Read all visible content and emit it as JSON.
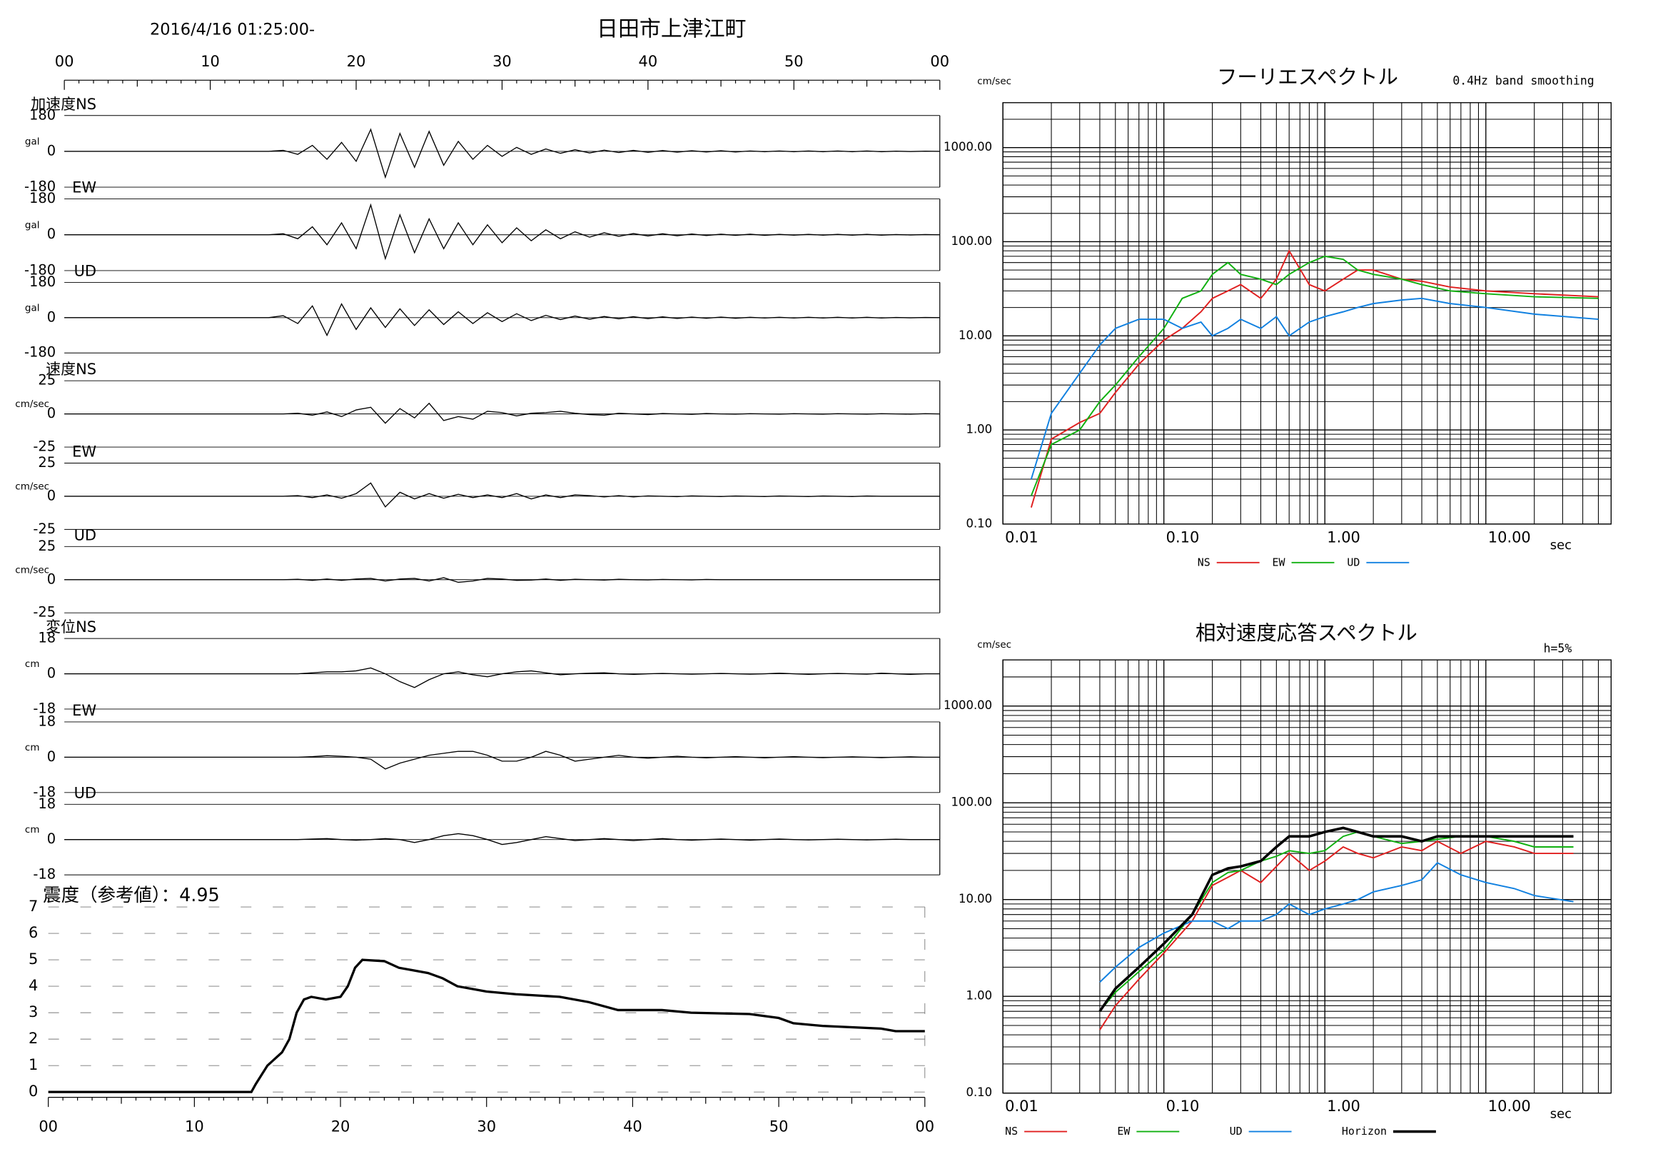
{
  "header": {
    "datetime": "2016/4/16 01:25:00-",
    "station": "日田市上津江町"
  },
  "chart_data": [
    {
      "type": "waveform",
      "xlim": [
        0,
        60
      ],
      "xticks": [
        {
          "value": 0,
          "label": "00"
        },
        10,
        20,
        30,
        40,
        50,
        {
          "value": 60,
          "label": "00"
        }
      ],
      "x": [
        0,
        14,
        15,
        16,
        17,
        18,
        19,
        20,
        21,
        22,
        23,
        24,
        25,
        26,
        27,
        28,
        29,
        30,
        31,
        32,
        33,
        34,
        35,
        36,
        37,
        38,
        39,
        40,
        41,
        42,
        43,
        44,
        45,
        46,
        47,
        48,
        49,
        50,
        51,
        52,
        53,
        54,
        55,
        56,
        57,
        58,
        59,
        60
      ],
      "series": [
        {
          "name": "加速度NS",
          "unit": "gal",
          "color": "#000000",
          "ylim": [
            -180,
            180
          ],
          "yticks": [
            -180,
            0,
            180
          ],
          "values": [
            0,
            0,
            5,
            -15,
            30,
            -40,
            45,
            -50,
            110,
            -130,
            90,
            -80,
            100,
            -70,
            50,
            -40,
            30,
            -25,
            20,
            -15,
            12,
            -10,
            8,
            -8,
            6,
            -6,
            5,
            -5,
            4,
            -4,
            3,
            -3,
            3,
            -3,
            2,
            -2,
            2,
            -2,
            2,
            -2,
            2,
            -2,
            2,
            -2,
            1,
            -1,
            1,
            0
          ]
        },
        {
          "name": "EW",
          "unit": "gal",
          "color": "#000000",
          "ylim": [
            -180,
            180
          ],
          "yticks": [
            -180,
            0,
            180
          ],
          "values": [
            0,
            0,
            5,
            -20,
            40,
            -50,
            60,
            -70,
            150,
            -120,
            100,
            -90,
            80,
            -70,
            60,
            -50,
            50,
            -40,
            35,
            -30,
            25,
            -20,
            15,
            -12,
            10,
            -8,
            6,
            -6,
            5,
            -5,
            4,
            -4,
            3,
            -3,
            3,
            -3,
            2,
            -2,
            2,
            -2,
            2,
            -2,
            2,
            -2,
            1,
            -1,
            1,
            0
          ]
        },
        {
          "name": "UD",
          "unit": "gal",
          "color": "#000000",
          "ylim": [
            -180,
            180
          ],
          "yticks": [
            -180,
            0,
            180
          ],
          "values": [
            0,
            0,
            10,
            -30,
            60,
            -90,
            70,
            -60,
            50,
            -50,
            45,
            -40,
            40,
            -35,
            30,
            -30,
            25,
            -20,
            20,
            -15,
            12,
            -10,
            8,
            -8,
            6,
            -6,
            5,
            -5,
            4,
            -4,
            3,
            -3,
            3,
            -3,
            2,
            -2,
            2,
            -2,
            2,
            -2,
            2,
            -2,
            2,
            -2,
            1,
            -1,
            1,
            0
          ]
        },
        {
          "name": "速度NS",
          "unit": "cm/sec",
          "color": "#000000",
          "ylim": [
            -25,
            25
          ],
          "yticks": [
            -25,
            0,
            25
          ],
          "values": [
            0,
            0,
            0,
            0.5,
            -1,
            1.5,
            -2,
            3,
            5,
            -7,
            4,
            -3,
            8,
            -5,
            -2,
            -4,
            2,
            1,
            -1.5,
            0.5,
            1,
            2,
            0.5,
            -0.5,
            -1,
            0.5,
            0,
            -0.5,
            0.3,
            0,
            -0.3,
            0.3,
            0,
            -0.2,
            0.2,
            0,
            -0.2,
            0.2,
            0,
            -0.2,
            0.2,
            0,
            -0.2,
            0.2,
            0,
            -0.2,
            0.2,
            0
          ]
        },
        {
          "name": "EW",
          "unit": "cm/sec",
          "color": "#000000",
          "ylim": [
            -25,
            25
          ],
          "yticks": [
            -25,
            0,
            25
          ],
          "values": [
            0,
            0,
            0,
            0.5,
            -1,
            1,
            -1.5,
            2,
            10,
            -8,
            3,
            -2,
            2,
            -1.5,
            1.5,
            -1,
            1,
            -1,
            2,
            -2,
            1,
            -1,
            1,
            0.5,
            -0.5,
            0.5,
            -0.5,
            0.3,
            0,
            -0.3,
            0.3,
            0,
            -0.2,
            0.2,
            0,
            -0.2,
            0.2,
            0,
            -0.2,
            0.2,
            0,
            -0.2,
            0.2,
            0,
            0,
            0,
            0,
            0
          ]
        },
        {
          "name": "UD",
          "unit": "cm/sec",
          "color": "#000000",
          "ylim": [
            -25,
            25
          ],
          "yticks": [
            -25,
            0,
            25
          ],
          "values": [
            0,
            0,
            0,
            0.3,
            -0.5,
            0.5,
            -0.5,
            0.5,
            1,
            -1,
            0.5,
            1,
            -1,
            1.5,
            -2,
            -1,
            1,
            0.5,
            -0.5,
            -0.3,
            0.5,
            -0.5,
            0.3,
            0,
            -0.3,
            0.3,
            0,
            -0.2,
            0.2,
            0,
            -0.2,
            0.2,
            0,
            0,
            0,
            0,
            0,
            0,
            0,
            0,
            0,
            0,
            0,
            0,
            0,
            0,
            0,
            0
          ]
        },
        {
          "name": "変位NS",
          "unit": "cm",
          "color": "#000000",
          "ylim": [
            -18,
            18
          ],
          "yticks": [
            -18,
            0,
            18
          ],
          "values": [
            0,
            0,
            0,
            0,
            0.5,
            1,
            1,
            1.5,
            3,
            0,
            -4,
            -7,
            -3,
            0,
            1,
            -0.5,
            -1.5,
            0,
            1,
            1.5,
            0.5,
            -0.5,
            0,
            0.3,
            0.5,
            0,
            -0.3,
            0,
            0.2,
            0,
            -0.2,
            0,
            0.2,
            0,
            -0.2,
            0,
            0.3,
            0,
            -0.3,
            0,
            0.2,
            0,
            -0.2,
            0.3,
            0,
            -0.3,
            0,
            0
          ]
        },
        {
          "name": "EW",
          "unit": "cm",
          "color": "#000000",
          "ylim": [
            -18,
            18
          ],
          "yticks": [
            -18,
            0,
            18
          ],
          "values": [
            0,
            0,
            0,
            0,
            0.3,
            0.8,
            0.5,
            0,
            -1,
            -6,
            -3,
            -1,
            1,
            2,
            3,
            3,
            1,
            -2,
            -2,
            0,
            3,
            1,
            -2,
            -1,
            0,
            1,
            0,
            -0.5,
            0,
            0.5,
            0,
            -0.3,
            0,
            0.3,
            0,
            -0.3,
            0,
            0.3,
            0,
            -0.2,
            0,
            0.2,
            0,
            -0.2,
            0,
            0.2,
            0,
            0
          ]
        },
        {
          "name": "UD",
          "unit": "cm",
          "color": "#000000",
          "ylim": [
            -18,
            18
          ],
          "yticks": [
            -18,
            0,
            18
          ],
          "values": [
            0,
            0,
            0,
            0,
            0.3,
            0.5,
            0,
            -0.3,
            0,
            0.5,
            0,
            -1.5,
            0,
            2,
            3,
            2,
            0,
            -2.5,
            -1.5,
            0,
            1.5,
            0.5,
            -0.5,
            0,
            0.5,
            0,
            -0.5,
            0,
            0.5,
            0,
            -0.3,
            0,
            0.3,
            0,
            -0.3,
            0,
            0.3,
            0,
            -0.2,
            0,
            0.2,
            0,
            -0.2,
            0,
            0.2,
            0,
            0,
            0
          ]
        }
      ]
    },
    {
      "type": "intensity",
      "title": "震度（参考値）：4.95",
      "color": "#000000",
      "grid": true,
      "xlim": [
        0,
        60
      ],
      "xticks": [
        {
          "value": 0,
          "label": "00"
        },
        10,
        20,
        30,
        40,
        50,
        {
          "value": 60,
          "label": "00"
        }
      ],
      "ylim": [
        0,
        7
      ],
      "yticks": [
        0,
        1,
        2,
        3,
        4,
        5,
        6,
        7
      ],
      "x": [
        0,
        13.9,
        14.2,
        15,
        16,
        16.5,
        17,
        17.5,
        18,
        19,
        20,
        20.5,
        21,
        21.5,
        23,
        24,
        25,
        26,
        27,
        28,
        30,
        32,
        35,
        37,
        39,
        42,
        44,
        48,
        50,
        51,
        53,
        57,
        58,
        60
      ],
      "values": [
        0,
        0,
        0.3,
        1,
        1.5,
        2,
        3,
        3.5,
        3.6,
        3.5,
        3.6,
        4,
        4.7,
        5,
        4.95,
        4.7,
        4.6,
        4.5,
        4.3,
        4,
        3.8,
        3.7,
        3.6,
        3.4,
        3.1,
        3.1,
        3.0,
        2.95,
        2.8,
        2.6,
        2.5,
        2.4,
        2.3,
        2.3
      ]
    },
    {
      "type": "log-spectrum",
      "title": "フーリエスペクトル",
      "subtitle": "0.4Hz band smoothing",
      "ylabel": "cm/sec",
      "xlabel": "sec",
      "xlog": true,
      "ylog": true,
      "grid": true,
      "xlim": [
        0.01,
        60
      ],
      "ylim": [
        0.1,
        3000
      ],
      "xticks": [
        0.01,
        {
          "value": 0.1,
          "label": "0.10"
        },
        {
          "value": 1,
          "label": "1.00"
        },
        {
          "value": 10,
          "label": "10.00"
        }
      ],
      "yticks": [
        {
          "value": 0.1,
          "label": "0.10"
        },
        {
          "value": 1,
          "label": "1.00"
        },
        {
          "value": 10,
          "label": "10.00"
        },
        {
          "value": 100,
          "label": "100.00"
        },
        {
          "value": 1000,
          "label": "1000.00"
        }
      ],
      "x": [
        0.015,
        0.02,
        0.03,
        0.04,
        0.05,
        0.07,
        0.1,
        0.13,
        0.17,
        0.2,
        0.25,
        0.3,
        0.4,
        0.5,
        0.6,
        0.8,
        1.0,
        1.3,
        1.6,
        2.0,
        3,
        4,
        6,
        10,
        20,
        50
      ],
      "series": [
        {
          "name": "NS",
          "color": "#e02020",
          "values": [
            0.15,
            0.8,
            1.2,
            1.5,
            2.5,
            5,
            9,
            12,
            18,
            25,
            30,
            35,
            25,
            40,
            80,
            35,
            30,
            40,
            50,
            50,
            40,
            38,
            33,
            30,
            28,
            26
          ]
        },
        {
          "name": "EW",
          "color": "#10b010",
          "values": [
            0.2,
            0.7,
            1.0,
            2,
            3,
            6,
            12,
            25,
            30,
            45,
            60,
            45,
            40,
            35,
            45,
            60,
            70,
            65,
            50,
            45,
            40,
            35,
            30,
            28,
            26,
            25
          ]
        },
        {
          "name": "UD",
          "color": "#1080e0",
          "values": [
            0.3,
            1.5,
            4,
            8,
            12,
            15,
            15,
            12,
            14,
            10,
            12,
            15,
            12,
            16,
            10,
            14,
            16,
            18,
            20,
            22,
            24,
            25,
            22,
            20,
            17,
            15
          ]
        }
      ]
    },
    {
      "type": "log-spectrum",
      "title": "相対速度応答スペクトル",
      "subtitle": "h=5%",
      "ylabel": "cm/sec",
      "xlabel": "sec",
      "xlog": true,
      "ylog": true,
      "grid": true,
      "xlim": [
        0.01,
        60
      ],
      "ylim": [
        0.1,
        3000
      ],
      "xticks": [
        0.01,
        {
          "value": 0.1,
          "label": "0.10"
        },
        {
          "value": 1,
          "label": "1.00"
        },
        {
          "value": 10,
          "label": "10.00"
        }
      ],
      "yticks": [
        {
          "value": 0.1,
          "label": "0.10"
        },
        {
          "value": 1,
          "label": "1.00"
        },
        {
          "value": 10,
          "label": "10.00"
        },
        {
          "value": 100,
          "label": "100.00"
        },
        {
          "value": 1000,
          "label": "1000.00"
        }
      ],
      "x": [
        0.04,
        0.05,
        0.07,
        0.1,
        0.15,
        0.2,
        0.25,
        0.3,
        0.4,
        0.5,
        0.6,
        0.8,
        1,
        1.3,
        1.6,
        2,
        3,
        4,
        5,
        7,
        10,
        15,
        20,
        35
      ],
      "series": [
        {
          "name": "NS",
          "color": "#e02020",
          "values": [
            0.45,
            0.8,
            1.5,
            2.8,
            6,
            14,
            17,
            20,
            15,
            22,
            30,
            20,
            25,
            35,
            30,
            27,
            35,
            32,
            40,
            30,
            40,
            35,
            30,
            30
          ]
        },
        {
          "name": "EW",
          "color": "#10b010",
          "values": [
            0.7,
            1.1,
            1.8,
            3,
            7,
            15,
            19,
            20,
            25,
            28,
            32,
            30,
            32,
            45,
            50,
            45,
            38,
            40,
            42,
            45,
            45,
            40,
            35,
            35
          ]
        },
        {
          "name": "UD",
          "color": "#1080e0",
          "values": [
            1.4,
            2.0,
            3.2,
            4.5,
            6,
            6,
            5,
            6,
            6,
            7,
            9,
            7,
            8,
            9,
            10,
            12,
            14,
            16,
            24,
            18,
            15,
            13,
            11,
            9.5
          ]
        },
        {
          "name": "Horizon",
          "color": "#000000",
          "bold": true,
          "values": [
            0.7,
            1.2,
            2,
            3.5,
            7,
            18,
            21,
            22,
            25,
            35,
            45,
            45,
            50,
            55,
            50,
            45,
            45,
            40,
            45,
            45,
            45,
            45,
            45,
            45
          ]
        }
      ]
    }
  ]
}
